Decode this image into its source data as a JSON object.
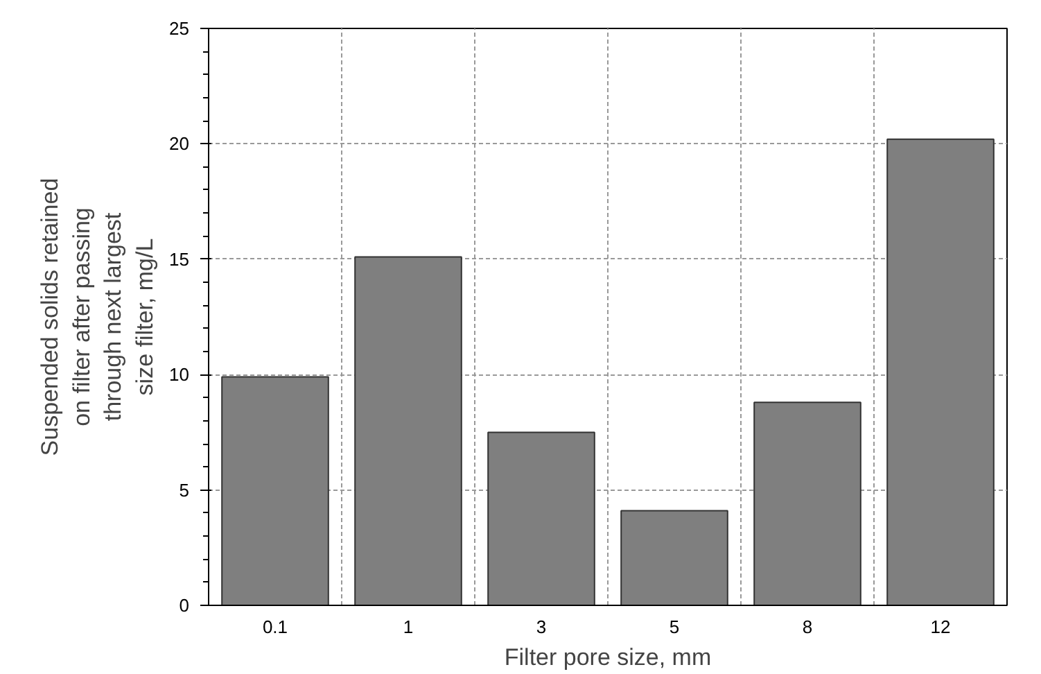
{
  "chart_data": {
    "type": "bar",
    "xlabel": "Filter pore size, mm",
    "ylabel": "Suspended solids retained\non filter after passing\nthrough next largest\nsize filter, mg/L",
    "categories": [
      "0.1",
      "1",
      "3",
      "5",
      "8",
      "12"
    ],
    "values": [
      9.9,
      15.1,
      7.5,
      4.1,
      8.8,
      20.2
    ],
    "color": "#7f7f7f",
    "ylim": [
      0,
      25
    ],
    "yticks": [
      0,
      5,
      10,
      15,
      20,
      25
    ],
    "grid": true
  }
}
